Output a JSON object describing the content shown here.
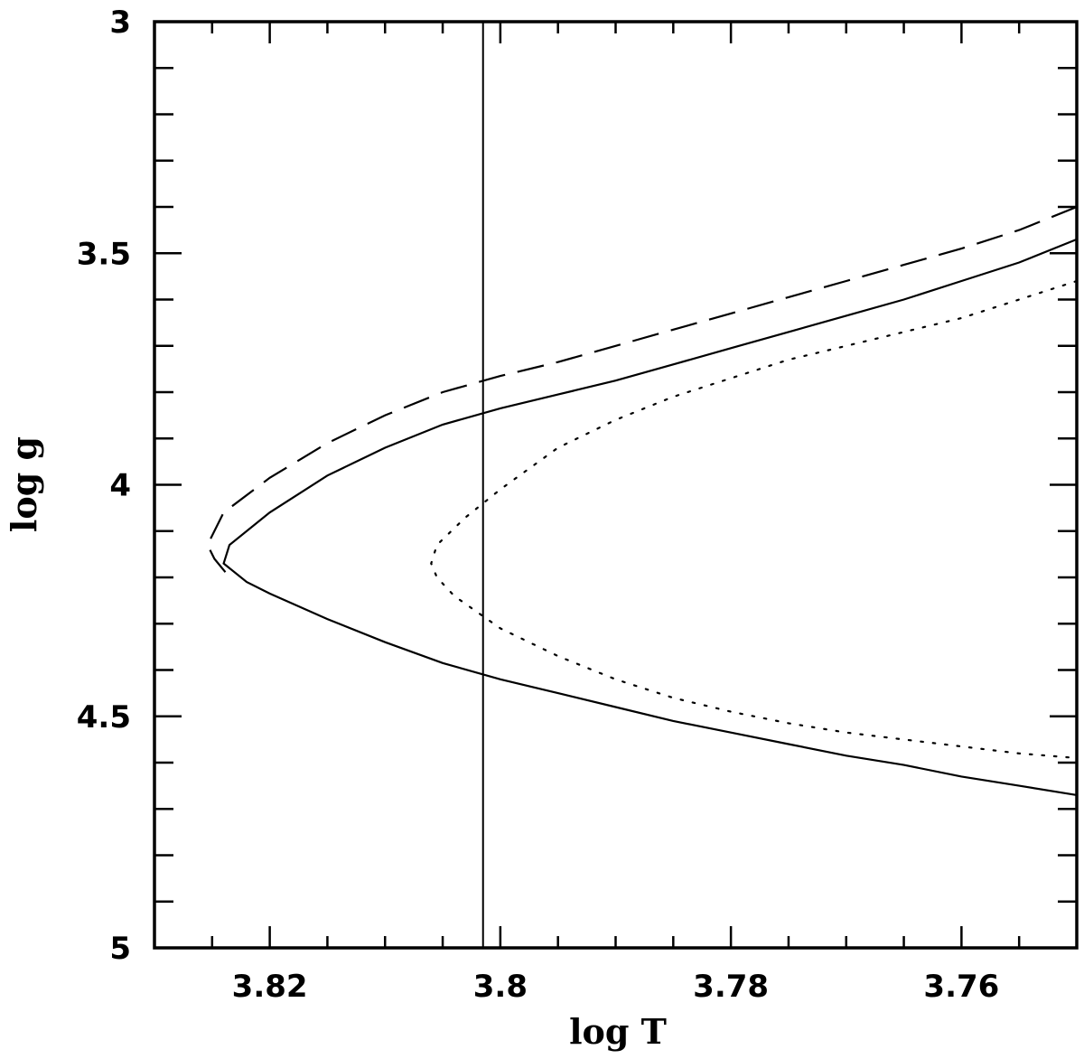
{
  "chart_data": {
    "type": "line",
    "xlabel": "log T",
    "ylabel": "log g",
    "xlim": [
      3.83,
      3.75
    ],
    "ylim": [
      3.0,
      5.0
    ],
    "x_reversed": true,
    "y_reversed": true,
    "grid": false,
    "x_ticks": [
      3.82,
      3.8,
      3.78,
      3.76
    ],
    "x_tick_labels": [
      "3.82",
      "3.8",
      "3.78",
      "3.76"
    ],
    "x_minor_step": 0.005,
    "y_ticks": [
      3.0,
      3.5,
      4.0,
      4.5,
      5.0
    ],
    "y_tick_labels": [
      "3",
      "3.5",
      "4",
      "4.5",
      "5"
    ],
    "y_minor_step": 0.1,
    "vertical_line": {
      "x": 3.8015,
      "style": "solid"
    },
    "series": [
      {
        "style": "dashed",
        "points": [
          [
            3.75,
            3.4
          ],
          [
            3.755,
            3.45
          ],
          [
            3.76,
            3.49
          ],
          [
            3.765,
            3.525
          ],
          [
            3.77,
            3.56
          ],
          [
            3.775,
            3.595
          ],
          [
            3.78,
            3.63
          ],
          [
            3.785,
            3.665
          ],
          [
            3.79,
            3.7
          ],
          [
            3.795,
            3.735
          ],
          [
            3.8,
            3.765
          ],
          [
            3.805,
            3.8
          ],
          [
            3.81,
            3.85
          ],
          [
            3.815,
            3.91
          ],
          [
            3.82,
            3.985
          ],
          [
            3.824,
            4.06
          ],
          [
            3.8254,
            4.13
          ],
          [
            3.8248,
            4.16
          ],
          [
            3.8238,
            4.19
          ]
        ]
      },
      {
        "style": "solid",
        "points": [
          [
            3.75,
            3.47
          ],
          [
            3.755,
            3.52
          ],
          [
            3.76,
            3.56
          ],
          [
            3.765,
            3.6
          ],
          [
            3.77,
            3.635
          ],
          [
            3.775,
            3.67
          ],
          [
            3.78,
            3.705
          ],
          [
            3.785,
            3.74
          ],
          [
            3.79,
            3.775
          ],
          [
            3.795,
            3.805
          ],
          [
            3.8,
            3.835
          ],
          [
            3.805,
            3.87
          ],
          [
            3.81,
            3.92
          ],
          [
            3.815,
            3.98
          ],
          [
            3.82,
            4.06
          ],
          [
            3.8235,
            4.13
          ],
          [
            3.824,
            4.17
          ],
          [
            3.822,
            4.21
          ],
          [
            3.82,
            4.235
          ],
          [
            3.815,
            4.29
          ],
          [
            3.81,
            4.34
          ],
          [
            3.805,
            4.385
          ],
          [
            3.8,
            4.42
          ],
          [
            3.795,
            4.45
          ],
          [
            3.79,
            4.48
          ],
          [
            3.785,
            4.51
          ],
          [
            3.78,
            4.535
          ],
          [
            3.775,
            4.56
          ],
          [
            3.77,
            4.585
          ],
          [
            3.765,
            4.605
          ],
          [
            3.76,
            4.63
          ],
          [
            3.755,
            4.65
          ],
          [
            3.75,
            4.67
          ]
        ]
      },
      {
        "style": "dotted",
        "points": [
          [
            3.75,
            3.56
          ],
          [
            3.755,
            3.6
          ],
          [
            3.76,
            3.64
          ],
          [
            3.765,
            3.67
          ],
          [
            3.77,
            3.7
          ],
          [
            3.775,
            3.73
          ],
          [
            3.78,
            3.77
          ],
          [
            3.785,
            3.81
          ],
          [
            3.79,
            3.86
          ],
          [
            3.795,
            3.92
          ],
          [
            3.8,
            4.01
          ],
          [
            3.803,
            4.07
          ],
          [
            3.8055,
            4.13
          ],
          [
            3.806,
            4.17
          ],
          [
            3.8055,
            4.2
          ],
          [
            3.804,
            4.24
          ],
          [
            3.8,
            4.31
          ],
          [
            3.795,
            4.37
          ],
          [
            3.79,
            4.42
          ],
          [
            3.785,
            4.46
          ],
          [
            3.78,
            4.49
          ],
          [
            3.775,
            4.515
          ],
          [
            3.77,
            4.535
          ],
          [
            3.765,
            4.55
          ],
          [
            3.76,
            4.565
          ],
          [
            3.755,
            4.58
          ],
          [
            3.75,
            4.59
          ]
        ]
      }
    ]
  }
}
